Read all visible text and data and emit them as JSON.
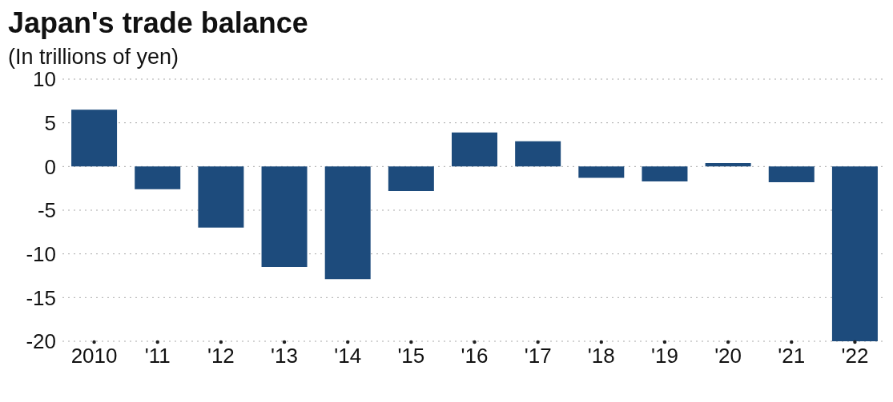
{
  "chart_data": {
    "type": "bar",
    "title": "Japan's trade balance",
    "subtitle": "(In trillions of yen)",
    "categories": [
      "2010",
      "'11",
      "'12",
      "'13",
      "'14",
      "'15",
      "'16",
      "'17",
      "'18",
      "'19",
      "'20",
      "'21",
      "'22"
    ],
    "values": [
      6.5,
      -2.6,
      -7.0,
      -11.5,
      -12.9,
      -2.8,
      3.9,
      2.9,
      -1.3,
      -1.7,
      0.4,
      -1.8,
      -20
    ],
    "color": "#1d4b7c",
    "ylim": [
      -20,
      10
    ],
    "yticks": [
      -20,
      -15,
      -10,
      -5,
      0,
      5,
      10
    ],
    "grid": "y"
  }
}
